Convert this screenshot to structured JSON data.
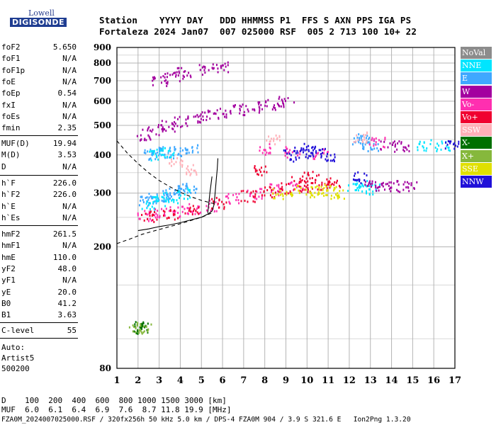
{
  "brand": {
    "top": "Lowell",
    "main": "DIGISONDE"
  },
  "header": {
    "line1": "Station    YYYY DAY   DDD HHMMSS P1  FFS S AXN PPS IGA PS",
    "line2": "Fortaleza 2024 Jan07  007 025000 RSF  005 2 713 100 10+ 22"
  },
  "params_group1": [
    {
      "name": "foF2",
      "value": "5.650"
    },
    {
      "name": "foF1",
      "value": "N/A"
    },
    {
      "name": "foF1p",
      "value": "N/A"
    },
    {
      "name": "foE",
      "value": "N/A"
    },
    {
      "name": "foEp",
      "value": "0.54"
    },
    {
      "name": "fxI",
      "value": "N/A"
    },
    {
      "name": "foEs",
      "value": "N/A"
    },
    {
      "name": "fmin",
      "value": "2.35"
    }
  ],
  "params_group2": [
    {
      "name": "MUF(D)",
      "value": "19.94"
    },
    {
      "name": "M(D)",
      "value": "3.53"
    },
    {
      "name": "D",
      "value": "N/A"
    }
  ],
  "params_group3": [
    {
      "name": "h`F",
      "value": "226.0"
    },
    {
      "name": "h`F2",
      "value": "226.0"
    },
    {
      "name": "h`E",
      "value": "N/A"
    },
    {
      "name": "h`Es",
      "value": "N/A"
    }
  ],
  "params_group4": [
    {
      "name": "hmF2",
      "value": "261.5"
    },
    {
      "name": "hmF1",
      "value": "N/A"
    },
    {
      "name": "hmE",
      "value": "110.0"
    },
    {
      "name": "yF2",
      "value": "48.0"
    },
    {
      "name": "yF1",
      "value": "N/A"
    },
    {
      "name": "yE",
      "value": "20.0"
    },
    {
      "name": "B0",
      "value": "41.2"
    },
    {
      "name": "B1",
      "value": "3.63"
    }
  ],
  "params_group5": [
    {
      "name": "C-level",
      "value": "55"
    }
  ],
  "autoscale": {
    "line1": "Auto:",
    "line2": "Artist5",
    "line3": "500200"
  },
  "footer": {
    "d_row": "D    100  200  400  600  800 1000 1500 3000 [km]",
    "muf_row": "MUF  6.0  6.1  6.4  6.9  7.6  8.7 11.8 19.9 [MHz]",
    "file_row": "FZA0M_2024007025000.RSF / 320fx256h 50 kHz 5.0 km / DPS-4 FZA0M 904 / 3.9 S 321.6 E   Ion2Png 1.3.20"
  },
  "legend": [
    {
      "label": "NoVal",
      "color": "#8c8c8c",
      "text": "#ffffff"
    },
    {
      "label": "NNE",
      "color": "#00e5ff",
      "text": "#ffffff"
    },
    {
      "label": "E",
      "color": "#3fa8ff",
      "text": "#ffffff"
    },
    {
      "label": "W",
      "color": "#a3009f",
      "text": "#ffffff"
    },
    {
      "label": "Vo-",
      "color": "#ff2fb0",
      "text": "#ffffff"
    },
    {
      "label": "Vo+",
      "color": "#f00030",
      "text": "#ffffff"
    },
    {
      "label": "SSW",
      "color": "#ffb0b8",
      "text": "#ffffff"
    },
    {
      "label": "X-",
      "color": "#007000",
      "text": "#ffffff"
    },
    {
      "label": "X+",
      "color": "#86b83c",
      "text": "#ffffff"
    },
    {
      "label": "SSE",
      "color": "#e0e000",
      "text": "#ffffff"
    },
    {
      "label": "NNW",
      "color": "#2010d8",
      "text": "#ffffff"
    }
  ],
  "chart_data": {
    "type": "scatter",
    "xlabel": "",
    "ylabel": "",
    "xlim": [
      1,
      17
    ],
    "ylim": [
      80,
      900
    ],
    "yscale": "log",
    "x_ticks": [
      1,
      2,
      3,
      4,
      5,
      6,
      7,
      8,
      9,
      10,
      11,
      12,
      13,
      14,
      15,
      16,
      17
    ],
    "y_ticks": [
      80,
      200,
      300,
      400,
      500,
      600,
      700,
      800,
      900
    ],
    "grid": true,
    "legend_placement": "right",
    "series": [
      {
        "name": "X-",
        "color": "#007000",
        "points": [
          [
            2.1,
            110
          ],
          [
            2.2,
            109
          ]
        ]
      },
      {
        "name": "X+",
        "color": "#86b83c",
        "points": [
          [
            1.9,
            109
          ],
          [
            2.3,
            110
          ]
        ]
      },
      {
        "name": "E",
        "color": "#3fa8ff",
        "points": [
          [
            2.4,
            282
          ],
          [
            2.8,
            290
          ],
          [
            3.2,
            296
          ],
          [
            3.6,
            300
          ],
          [
            4.0,
            306
          ],
          [
            4.4,
            315
          ],
          [
            2.6,
            405
          ],
          [
            3.0,
            408
          ],
          [
            3.4,
            410
          ],
          [
            4.0,
            415
          ],
          [
            4.6,
            418
          ],
          [
            12.5,
            455
          ],
          [
            12.8,
            440
          ],
          [
            13.0,
            430
          ]
        ]
      },
      {
        "name": "NNE",
        "color": "#00e5ff",
        "points": [
          [
            2.5,
            275
          ],
          [
            3.0,
            285
          ],
          [
            3.5,
            292
          ],
          [
            4.2,
            300
          ],
          [
            2.8,
            402
          ],
          [
            3.4,
            412
          ],
          [
            12.2,
            315
          ],
          [
            12.6,
            318
          ],
          [
            13.1,
            312
          ],
          [
            15.5,
            432
          ],
          [
            16.4,
            430
          ]
        ]
      },
      {
        "name": "W",
        "color": "#a3009f",
        "points": [
          [
            2.3,
            468
          ],
          [
            2.8,
            485
          ],
          [
            3.4,
            500
          ],
          [
            4.0,
            515
          ],
          [
            4.6,
            527
          ],
          [
            5.3,
            540
          ],
          [
            6.0,
            550
          ],
          [
            6.8,
            565
          ],
          [
            7.5,
            575
          ],
          [
            8.3,
            590
          ],
          [
            9.0,
            600
          ],
          [
            3.0,
            705
          ],
          [
            3.6,
            725
          ],
          [
            4.2,
            745
          ],
          [
            5.2,
            765
          ],
          [
            6.0,
            785
          ],
          [
            13.0,
            320
          ],
          [
            13.5,
            318
          ],
          [
            14.2,
            318
          ],
          [
            14.8,
            315
          ],
          [
            13.8,
            430
          ],
          [
            14.5,
            428
          ]
        ]
      },
      {
        "name": "Vo-",
        "color": "#ff2fb0",
        "points": [
          [
            2.3,
            255
          ],
          [
            3.0,
            258
          ],
          [
            3.8,
            262
          ],
          [
            4.6,
            268
          ],
          [
            5.5,
            275
          ],
          [
            6.5,
            290
          ],
          [
            7.5,
            300
          ],
          [
            8.5,
            310
          ],
          [
            9.5,
            315
          ],
          [
            8.0,
            420
          ],
          [
            9.3,
            410
          ],
          [
            10.6,
            405
          ],
          [
            13.3,
            440
          ]
        ]
      },
      {
        "name": "Vo+",
        "color": "#f00030",
        "points": [
          [
            2.5,
            252
          ],
          [
            3.5,
            258
          ],
          [
            4.5,
            265
          ],
          [
            5.8,
            280
          ],
          [
            7.2,
            295
          ],
          [
            8.2,
            305
          ],
          [
            9.0,
            312
          ],
          [
            10.0,
            318
          ],
          [
            10.8,
            322
          ],
          [
            11.2,
            325
          ],
          [
            7.8,
            360
          ],
          [
            9.6,
            330
          ],
          [
            10.2,
            340
          ]
        ]
      },
      {
        "name": "SSE",
        "color": "#e0e000",
        "points": [
          [
            10.2,
            305
          ],
          [
            10.6,
            310
          ],
          [
            11.0,
            308
          ],
          [
            11.4,
            300
          ],
          [
            8.7,
            300
          ],
          [
            9.5,
            308
          ]
        ]
      },
      {
        "name": "NNW",
        "color": "#2010d8",
        "points": [
          [
            9.2,
            400
          ],
          [
            9.7,
            410
          ],
          [
            10.1,
            420
          ],
          [
            10.5,
            412
          ],
          [
            11.0,
            398
          ],
          [
            12.5,
            340
          ],
          [
            16.8,
            430
          ]
        ]
      },
      {
        "name": "SSW",
        "color": "#ffb0b8",
        "points": [
          [
            3.8,
            380
          ],
          [
            4.5,
            360
          ],
          [
            8.4,
            455
          ],
          [
            12.5,
            460
          ]
        ]
      }
    ],
    "traces": [
      {
        "kind": "dashed",
        "points": [
          [
            1,
            445
          ],
          [
            1.5,
            405
          ],
          [
            2,
            375
          ],
          [
            2.5,
            350
          ],
          [
            3,
            330
          ],
          [
            3.5,
            315
          ],
          [
            4,
            302
          ],
          [
            4.5,
            292
          ],
          [
            5,
            284
          ],
          [
            5.5,
            278
          ],
          [
            5.7,
            276
          ]
        ]
      },
      {
        "kind": "dashed",
        "points": [
          [
            1,
            205
          ],
          [
            1.6,
            212
          ],
          [
            2.2,
            220
          ],
          [
            3,
            228
          ],
          [
            4,
            238
          ],
          [
            5,
            250
          ],
          [
            5.6,
            260
          ]
        ]
      },
      {
        "kind": "solid",
        "points": [
          [
            2,
            226
          ],
          [
            2.5,
            229
          ],
          [
            3,
            233
          ],
          [
            3.5,
            236
          ],
          [
            4,
            240
          ],
          [
            4.5,
            245
          ],
          [
            5,
            250
          ],
          [
            5.3,
            256
          ],
          [
            5.5,
            262
          ],
          [
            5.6,
            275
          ],
          [
            5.65,
            300
          ],
          [
            5.7,
            330
          ],
          [
            5.75,
            360
          ],
          [
            5.78,
            390
          ]
        ]
      },
      {
        "kind": "solid",
        "points": [
          [
            5.3,
            258
          ],
          [
            5.4,
            300
          ],
          [
            5.5,
            340
          ]
        ]
      }
    ]
  }
}
